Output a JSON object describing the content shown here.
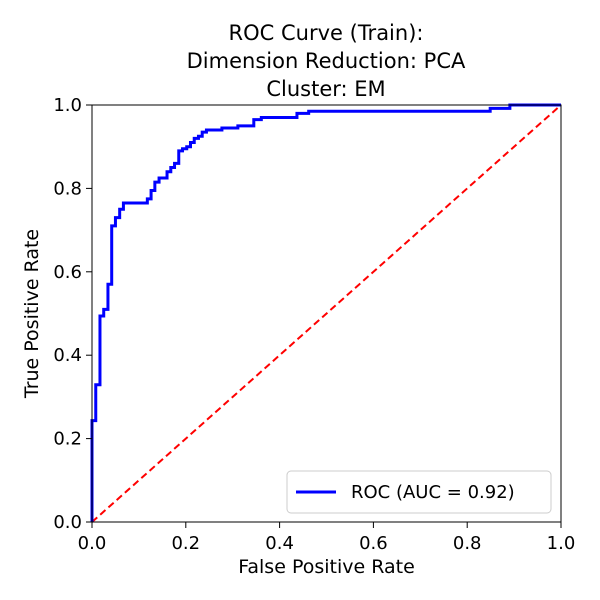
{
  "chart_data": {
    "type": "line",
    "title_lines": [
      "ROC Curve (Train):",
      "Dimension Reduction: PCA",
      "Cluster: EM"
    ],
    "xlabel": "False Positive Rate",
    "ylabel": "True Positive Rate",
    "xlim": [
      0.0,
      1.0
    ],
    "ylim": [
      0.0,
      1.0
    ],
    "xticks": [
      "0.0",
      "0.2",
      "0.4",
      "0.6",
      "0.8",
      "1.0"
    ],
    "yticks": [
      "0.0",
      "0.2",
      "0.4",
      "0.6",
      "0.8",
      "1.0"
    ],
    "grid": false,
    "legend_position": "lower right",
    "series": [
      {
        "name": "ROC (AUC = 0.92)",
        "color": "#0000ff",
        "style": "solid",
        "x": [
          0.0,
          0.0,
          0.008,
          0.008,
          0.017,
          0.017,
          0.025,
          0.025,
          0.034,
          0.034,
          0.038,
          0.038,
          0.042,
          0.042,
          0.05,
          0.05,
          0.059,
          0.059,
          0.067,
          0.067,
          0.075,
          0.075,
          0.084,
          0.084,
          0.118,
          0.118,
          0.126,
          0.126,
          0.134,
          0.134,
          0.143,
          0.143,
          0.16,
          0.16,
          0.168,
          0.168,
          0.176,
          0.176,
          0.185,
          0.185,
          0.193,
          0.193,
          0.202,
          0.202,
          0.21,
          0.21,
          0.218,
          0.218,
          0.227,
          0.227,
          0.235,
          0.235,
          0.244,
          0.244,
          0.277,
          0.277,
          0.311,
          0.311,
          0.345,
          0.345,
          0.361,
          0.361,
          0.437,
          0.437,
          0.462,
          0.462,
          0.849,
          0.849,
          0.891,
          0.891,
          1.0
        ],
        "y": [
          0.0,
          0.243,
          0.243,
          0.329,
          0.329,
          0.494,
          0.494,
          0.51,
          0.51,
          0.57,
          0.57,
          0.57,
          0.57,
          0.71,
          0.71,
          0.73,
          0.73,
          0.75,
          0.75,
          0.765,
          0.765,
          0.765,
          0.765,
          0.765,
          0.765,
          0.775,
          0.775,
          0.795,
          0.795,
          0.815,
          0.815,
          0.825,
          0.825,
          0.84,
          0.84,
          0.85,
          0.85,
          0.86,
          0.86,
          0.89,
          0.89,
          0.895,
          0.895,
          0.9,
          0.9,
          0.91,
          0.91,
          0.92,
          0.92,
          0.925,
          0.925,
          0.935,
          0.935,
          0.94,
          0.94,
          0.945,
          0.945,
          0.95,
          0.95,
          0.965,
          0.965,
          0.97,
          0.97,
          0.98,
          0.98,
          0.985,
          0.985,
          0.992,
          0.992,
          1.0,
          1.0
        ]
      },
      {
        "name": "",
        "color": "#ff0000",
        "style": "dashed",
        "x": [
          0.0,
          1.0
        ],
        "y": [
          0.0,
          1.0
        ]
      }
    ]
  }
}
